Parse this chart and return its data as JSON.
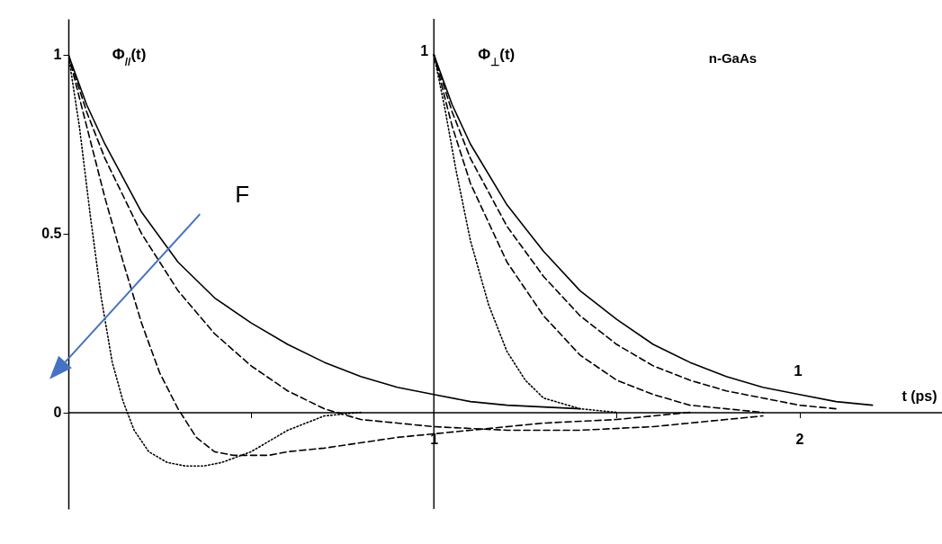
{
  "chart_data": {
    "type": "line",
    "xlabel": "t (ps)",
    "xlim": [
      0,
      2.4
    ],
    "ylim": [
      -0.27,
      1.1
    ],
    "xticks": [
      {
        "value": 0.5,
        "label": null
      },
      1,
      {
        "value": 1.5,
        "label": null
      },
      2
    ],
    "yticks": [
      0,
      0.5,
      1
    ],
    "grid": false,
    "marker": "none",
    "ref_lines": [
      {
        "axis": "x",
        "value": 1,
        "label": "1"
      }
    ],
    "annotations": [
      "Φ$_{//}$(t)",
      "Φ$_{⊥}$(t)",
      "1",
      "n-GaAs",
      "F"
    ],
    "series": [
      {
        "color": "#000000",
        "line_style": "solid",
        "x": [
          0,
          0.05,
          0.1,
          0.2,
          0.3,
          0.4,
          0.5,
          0.6,
          0.7,
          0.8,
          0.9,
          1.0,
          1.1,
          1.2,
          1.4
        ],
        "values": [
          1,
          0.86,
          0.75,
          0.56,
          0.42,
          0.32,
          0.25,
          0.19,
          0.14,
          0.1,
          0.07,
          0.05,
          0.03,
          0.02,
          0.01
        ]
      },
      {
        "color": "#000000",
        "line_style": "dashed",
        "x": [
          0,
          0.05,
          0.1,
          0.2,
          0.3,
          0.4,
          0.5,
          0.6,
          0.7,
          0.8,
          1.0,
          1.2,
          1.4,
          1.6,
          1.8,
          1.9
        ],
        "values": [
          1,
          0.84,
          0.71,
          0.5,
          0.34,
          0.22,
          0.13,
          0.06,
          0.01,
          -0.02,
          -0.04,
          -0.05,
          -0.05,
          -0.04,
          -0.02,
          -0.01
        ]
      },
      {
        "color": "#000000",
        "line_style": "dashed",
        "x": [
          0,
          0.05,
          0.1,
          0.15,
          0.2,
          0.25,
          0.3,
          0.35,
          0.4,
          0.45,
          0.5,
          0.55,
          0.6,
          0.7,
          0.9,
          1.1,
          1.3,
          1.5,
          1.7
        ],
        "values": [
          1,
          0.8,
          0.6,
          0.42,
          0.25,
          0.11,
          0.01,
          -0.07,
          -0.11,
          -0.12,
          -0.12,
          -0.12,
          -0.11,
          -0.1,
          -0.07,
          -0.05,
          -0.03,
          -0.02,
          0
        ]
      },
      {
        "color": "#000000",
        "line_style": "dotted",
        "x": [
          0,
          0.03,
          0.06,
          0.09,
          0.12,
          0.15,
          0.18,
          0.22,
          0.27,
          0.32,
          0.37,
          0.42,
          0.5,
          0.6,
          0.7,
          0.8
        ],
        "values": [
          1,
          0.8,
          0.55,
          0.32,
          0.14,
          0.03,
          -0.05,
          -0.11,
          -0.14,
          -0.15,
          -0.15,
          -0.14,
          -0.11,
          -0.05,
          -0.01,
          0
        ]
      },
      {
        "color": "#000000",
        "line_style": "solid",
        "x": [
          1,
          1.05,
          1.1,
          1.2,
          1.3,
          1.4,
          1.5,
          1.6,
          1.7,
          1.8,
          1.9,
          2.0,
          2.1,
          2.2
        ],
        "values": [
          1,
          0.86,
          0.75,
          0.58,
          0.45,
          0.34,
          0.26,
          0.19,
          0.14,
          0.1,
          0.07,
          0.05,
          0.03,
          0.02
        ]
      },
      {
        "color": "#000000",
        "line_style": "dashed",
        "x": [
          1,
          1.05,
          1.1,
          1.2,
          1.3,
          1.4,
          1.5,
          1.6,
          1.7,
          1.8,
          1.9,
          2.0,
          2.1
        ],
        "values": [
          1,
          0.84,
          0.71,
          0.52,
          0.38,
          0.27,
          0.19,
          0.13,
          0.09,
          0.06,
          0.04,
          0.02,
          0.01
        ]
      },
      {
        "color": "#000000",
        "line_style": "dashed",
        "x": [
          1,
          1.05,
          1.1,
          1.2,
          1.3,
          1.4,
          1.5,
          1.6,
          1.7,
          1.8,
          1.9
        ],
        "values": [
          1,
          0.8,
          0.64,
          0.42,
          0.27,
          0.16,
          0.09,
          0.05,
          0.02,
          0.01,
          0
        ]
      },
      {
        "color": "#000000",
        "line_style": "dotted",
        "x": [
          1,
          1.03,
          1.06,
          1.1,
          1.15,
          1.2,
          1.25,
          1.3,
          1.4,
          1.5
        ],
        "values": [
          1,
          0.85,
          0.68,
          0.48,
          0.3,
          0.17,
          0.09,
          0.04,
          0.01,
          0
        ]
      }
    ]
  }
}
